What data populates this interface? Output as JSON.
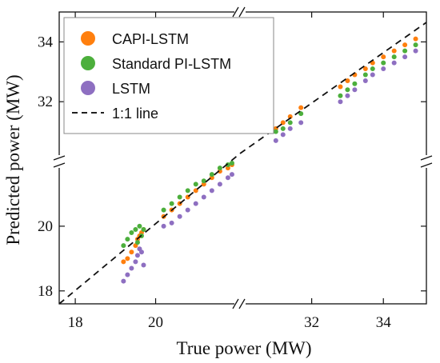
{
  "chart_data": {
    "type": "scatter",
    "xlabel": "True power (MW)",
    "ylabel": "Predicted power (MW)",
    "x_axis_segments": [
      {
        "range": [
          17.6,
          22.1
        ],
        "ticks": [
          18,
          20
        ]
      },
      {
        "range": [
          30.0,
          35.2
        ],
        "ticks": [
          32,
          34
        ]
      }
    ],
    "y_axis_segments": [
      {
        "range": [
          17.6,
          22.0
        ],
        "ticks": [
          18,
          20
        ]
      },
      {
        "range": [
          30.0,
          35.0
        ],
        "ticks": [
          32,
          34
        ]
      }
    ],
    "axis_breaks": "//",
    "legend_position": "top-left",
    "grid": false,
    "series": [
      {
        "name": "CAPI-LSTM",
        "color": "#ff7f0e",
        "points": [
          [
            19.2,
            18.9
          ],
          [
            19.3,
            19.0
          ],
          [
            19.4,
            19.2
          ],
          [
            19.5,
            19.4
          ],
          [
            19.55,
            19.6
          ],
          [
            19.6,
            19.7
          ],
          [
            19.65,
            19.8
          ],
          [
            19.7,
            19.9
          ],
          [
            20.2,
            20.3
          ],
          [
            20.4,
            20.5
          ],
          [
            20.6,
            20.7
          ],
          [
            20.8,
            20.9
          ],
          [
            21.0,
            21.1
          ],
          [
            21.2,
            21.3
          ],
          [
            21.4,
            21.5
          ],
          [
            21.6,
            21.7
          ],
          [
            21.8,
            21.8
          ],
          [
            21.9,
            21.9
          ],
          [
            31.0,
            31.1
          ],
          [
            31.2,
            31.3
          ],
          [
            31.4,
            31.5
          ],
          [
            31.7,
            31.8
          ],
          [
            32.8,
            32.5
          ],
          [
            33.0,
            32.7
          ],
          [
            33.2,
            32.9
          ],
          [
            33.5,
            33.1
          ],
          [
            33.7,
            33.3
          ],
          [
            34.0,
            33.5
          ],
          [
            34.3,
            33.7
          ],
          [
            34.6,
            33.9
          ],
          [
            34.9,
            34.1
          ]
        ]
      },
      {
        "name": "Standard PI-LSTM",
        "color": "#4caf3c",
        "points": [
          [
            19.2,
            19.4
          ],
          [
            19.3,
            19.6
          ],
          [
            19.4,
            19.8
          ],
          [
            19.5,
            19.9
          ],
          [
            19.55,
            19.5
          ],
          [
            19.6,
            20.0
          ],
          [
            19.65,
            19.7
          ],
          [
            19.7,
            19.9
          ],
          [
            20.2,
            20.5
          ],
          [
            20.4,
            20.7
          ],
          [
            20.6,
            20.9
          ],
          [
            20.8,
            21.1
          ],
          [
            21.0,
            21.3
          ],
          [
            21.2,
            21.4
          ],
          [
            21.4,
            21.6
          ],
          [
            21.6,
            21.8
          ],
          [
            21.8,
            21.9
          ],
          [
            21.9,
            21.95
          ],
          [
            31.0,
            31.0
          ],
          [
            31.2,
            31.1
          ],
          [
            31.4,
            31.3
          ],
          [
            31.7,
            31.6
          ],
          [
            32.8,
            32.2
          ],
          [
            33.0,
            32.4
          ],
          [
            33.2,
            32.6
          ],
          [
            33.5,
            32.9
          ],
          [
            33.7,
            33.1
          ],
          [
            34.0,
            33.3
          ],
          [
            34.3,
            33.5
          ],
          [
            34.6,
            33.7
          ],
          [
            34.9,
            33.9
          ]
        ]
      },
      {
        "name": "LSTM",
        "color": "#8e6fc1",
        "points": [
          [
            19.2,
            18.3
          ],
          [
            19.3,
            18.5
          ],
          [
            19.4,
            18.7
          ],
          [
            19.5,
            18.9
          ],
          [
            19.55,
            19.1
          ],
          [
            19.6,
            19.3
          ],
          [
            19.65,
            19.2
          ],
          [
            19.7,
            18.8
          ],
          [
            20.2,
            20.0
          ],
          [
            20.4,
            20.1
          ],
          [
            20.6,
            20.3
          ],
          [
            20.8,
            20.5
          ],
          [
            21.0,
            20.7
          ],
          [
            21.2,
            20.9
          ],
          [
            21.4,
            21.1
          ],
          [
            21.6,
            21.3
          ],
          [
            21.8,
            21.5
          ],
          [
            21.9,
            21.6
          ],
          [
            31.0,
            30.7
          ],
          [
            31.2,
            30.9
          ],
          [
            31.4,
            31.1
          ],
          [
            31.7,
            31.3
          ],
          [
            32.8,
            32.0
          ],
          [
            33.0,
            32.2
          ],
          [
            33.2,
            32.4
          ],
          [
            33.5,
            32.7
          ],
          [
            33.7,
            32.9
          ],
          [
            34.0,
            33.1
          ],
          [
            34.3,
            33.3
          ],
          [
            34.6,
            33.5
          ],
          [
            34.9,
            33.7
          ]
        ]
      },
      {
        "name": "1:1 line",
        "color": "#000000",
        "style": "dashed"
      }
    ]
  }
}
